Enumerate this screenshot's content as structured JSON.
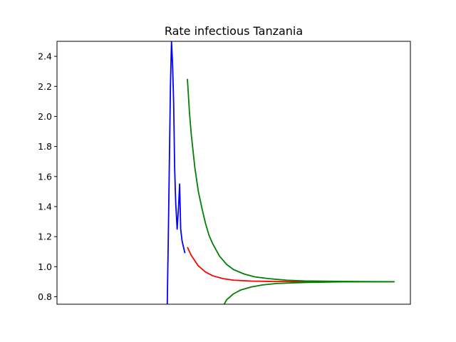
{
  "chart_data": {
    "type": "line",
    "title": "Rate infectious Tanzania",
    "xlabel": "",
    "ylabel": "",
    "xlim": [
      0,
      100
    ],
    "ylim": [
      0.75,
      2.5
    ],
    "xticks_visible": false,
    "yticks": [
      0.8,
      1.0,
      1.2,
      1.4,
      1.6,
      1.8,
      2.0,
      2.2,
      2.4
    ],
    "ytick_labels": [
      "0.8",
      "1.0",
      "1.2",
      "1.4",
      "1.6",
      "1.8",
      "2.0",
      "2.2",
      "2.4"
    ],
    "grid": false,
    "series": [
      {
        "color": "#0000ff",
        "points": [
          [
            31.2,
            0.75
          ],
          [
            31.5,
            1.2
          ],
          [
            31.8,
            1.7
          ],
          [
            32.1,
            2.2
          ],
          [
            32.4,
            2.5
          ],
          [
            32.7,
            2.35
          ],
          [
            33.0,
            2.1
          ],
          [
            33.3,
            1.65
          ],
          [
            33.6,
            1.42
          ],
          [
            34.0,
            1.25
          ],
          [
            34.4,
            1.4
          ],
          [
            34.7,
            1.55
          ],
          [
            35.0,
            1.25
          ],
          [
            35.4,
            1.17
          ],
          [
            35.8,
            1.13
          ],
          [
            36.2,
            1.09
          ]
        ]
      },
      {
        "color": "#ff0000",
        "points": [
          [
            36.9,
            1.13
          ],
          [
            38,
            1.075
          ],
          [
            40,
            1.005
          ],
          [
            42,
            0.965
          ],
          [
            44,
            0.94
          ],
          [
            47,
            0.92
          ],
          [
            50,
            0.91
          ],
          [
            55,
            0.904
          ],
          [
            60,
            0.902
          ],
          [
            70,
            0.9
          ],
          [
            80,
            0.9
          ],
          [
            95.5,
            0.9
          ]
        ]
      },
      {
        "color": "#008000",
        "points": [
          [
            36.9,
            2.25
          ],
          [
            37.5,
            2.02
          ],
          [
            38,
            1.88
          ],
          [
            39,
            1.66
          ],
          [
            40,
            1.5
          ],
          [
            41,
            1.39
          ],
          [
            42,
            1.29
          ],
          [
            43,
            1.21
          ],
          [
            44,
            1.155
          ],
          [
            46,
            1.07
          ],
          [
            48,
            1.015
          ],
          [
            50,
            0.98
          ],
          [
            53,
            0.951
          ],
          [
            56,
            0.932
          ],
          [
            60,
            0.92
          ],
          [
            65,
            0.91
          ],
          [
            70,
            0.905
          ],
          [
            80,
            0.902
          ],
          [
            95.5,
            0.9
          ]
        ]
      },
      {
        "color": "#008000",
        "points": [
          [
            47.3,
            0.75
          ],
          [
            48,
            0.78
          ],
          [
            50,
            0.82
          ],
          [
            52,
            0.845
          ],
          [
            55,
            0.865
          ],
          [
            58,
            0.878
          ],
          [
            62,
            0.888
          ],
          [
            70,
            0.895
          ],
          [
            80,
            0.899
          ],
          [
            95.5,
            0.9
          ]
        ]
      }
    ]
  }
}
